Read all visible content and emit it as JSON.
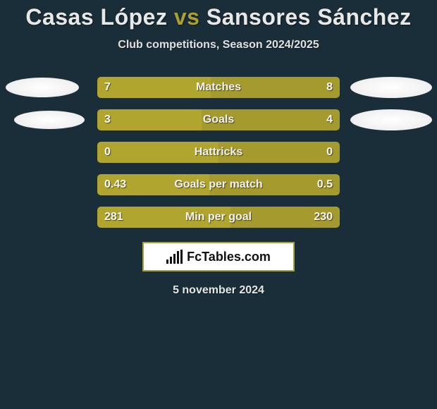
{
  "title": {
    "player1": "Casas López",
    "vs": "vs",
    "player2": "Sansores Sánchez"
  },
  "subtitle": "Club competitions, Season 2024/2025",
  "logo_text": "FcTables.com",
  "date": "5 november 2024",
  "colors": {
    "background": "#1a2e39",
    "accent": "#a8a034",
    "bar_left": "#b0a62f",
    "bar_right": "#a49a2e",
    "bar_row_bg": "#a8a034",
    "text": "#ffffff"
  },
  "chart": {
    "type": "bar-comparison",
    "rows": [
      {
        "label": "Matches",
        "left_value": "7",
        "right_value": "8",
        "left_num": 7,
        "right_num": 8,
        "left_pct": 46.7,
        "right_pct": 53.3,
        "show_avatars": true,
        "left_avatar_w": 104,
        "left_avatar_h": 28,
        "right_avatar_w": 116,
        "right_avatar_h": 30
      },
      {
        "label": "Goals",
        "left_value": "3",
        "right_value": "4",
        "left_num": 3,
        "right_num": 4,
        "left_pct": 42.9,
        "right_pct": 57.1,
        "show_avatars": true,
        "left_avatar_w": 100,
        "left_avatar_h": 26,
        "right_avatar_w": 116,
        "right_avatar_h": 30
      },
      {
        "label": "Hattricks",
        "left_value": "0",
        "right_value": "0",
        "left_num": 0,
        "right_num": 0,
        "left_pct": 50,
        "right_pct": 50,
        "show_avatars": false
      },
      {
        "label": "Goals per match",
        "left_value": "0.43",
        "right_value": "0.5",
        "left_num": 0.43,
        "right_num": 0.5,
        "left_pct": 46.2,
        "right_pct": 53.8,
        "show_avatars": false
      },
      {
        "label": "Min per goal",
        "left_value": "281",
        "right_value": "230",
        "left_num": 281,
        "right_num": 230,
        "left_pct": 55,
        "right_pct": 45,
        "show_avatars": false
      }
    ]
  }
}
